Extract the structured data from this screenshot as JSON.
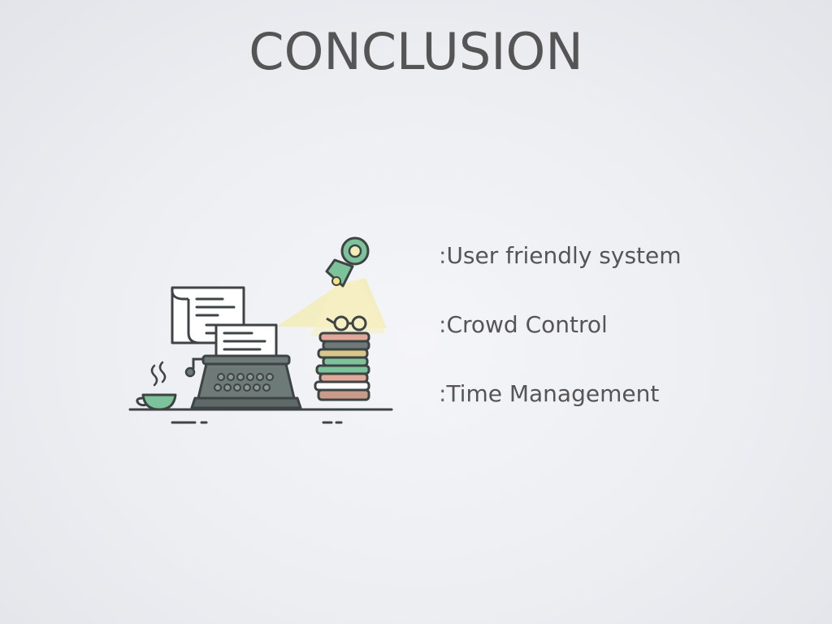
{
  "slide": {
    "title": "CONCLUSION",
    "bullet_marker": ":",
    "bullets": [
      {
        "text": "User friendly system"
      },
      {
        "text": "Crowd Control"
      },
      {
        "text": "Time Management"
      }
    ]
  },
  "illustration": {
    "subject": "typewriter-desk-scene",
    "colors": {
      "outline": "#3e4444",
      "typewriter": "#6e7a78",
      "lamp": "#7cc29a",
      "light": "#f3ecb8",
      "paper": "#ffffff"
    }
  }
}
